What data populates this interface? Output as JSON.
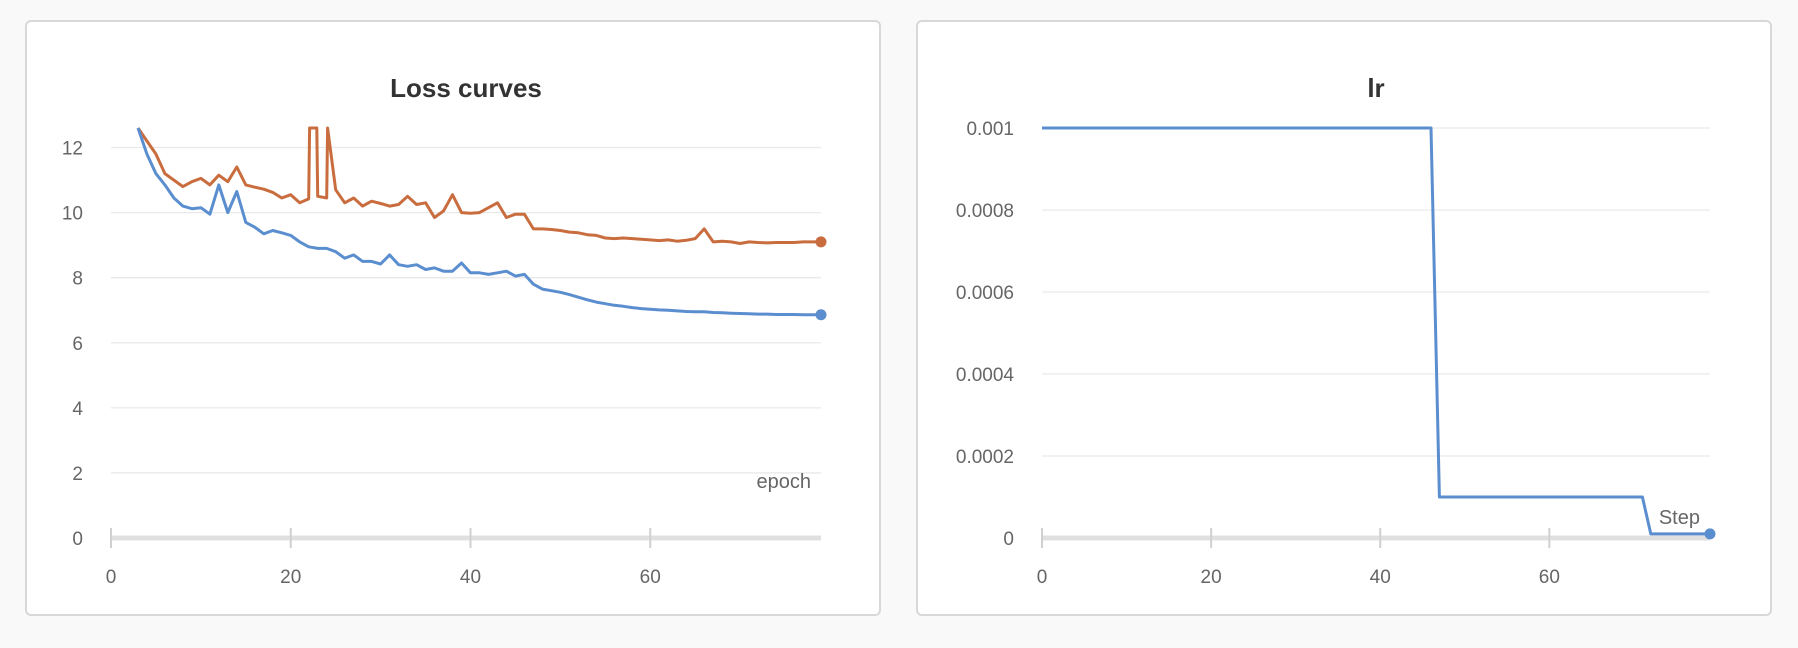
{
  "colors": {
    "blue": "#5b8ecf",
    "orange": "#c96d3f"
  },
  "chart_data": [
    {
      "type": "line",
      "title": "Loss curves",
      "xlabel": "epoch",
      "ylabel": "",
      "xlim": [
        0,
        79
      ],
      "ylim": [
        0,
        12.6
      ],
      "xticks": [
        0,
        20,
        40,
        60
      ],
      "yticks": [
        0,
        2,
        4,
        6,
        8,
        10,
        12
      ],
      "grid": true,
      "legend": "none",
      "series": [
        {
          "color": "#c96d3f",
          "end_marker": true,
          "x": [
            3,
            4,
            5,
            6,
            7,
            8,
            9,
            10,
            11,
            12,
            13,
            14,
            15,
            16,
            17,
            18,
            19,
            20,
            21,
            22,
            22.1,
            22.9,
            23,
            24,
            24.1,
            25,
            26,
            27,
            28,
            29,
            30,
            31,
            32,
            33,
            34,
            35,
            36,
            37,
            38,
            39,
            40,
            41,
            42,
            43,
            44,
            45,
            46,
            47,
            48,
            49,
            50,
            51,
            52,
            53,
            54,
            55,
            56,
            57,
            58,
            59,
            60,
            61,
            62,
            63,
            64,
            65,
            66,
            67,
            68,
            69,
            70,
            71,
            72,
            73,
            74,
            75,
            76,
            77,
            78,
            79
          ],
          "y": [
            12.6,
            12.2,
            11.8,
            11.2,
            11.0,
            10.8,
            10.95,
            11.05,
            10.85,
            11.15,
            10.95,
            11.4,
            10.85,
            10.78,
            10.72,
            10.62,
            10.45,
            10.55,
            10.3,
            10.42,
            12.6,
            12.6,
            10.5,
            10.45,
            12.6,
            10.7,
            10.3,
            10.45,
            10.2,
            10.35,
            10.28,
            10.2,
            10.25,
            10.5,
            10.25,
            10.3,
            9.85,
            10.05,
            10.55,
            10.0,
            9.98,
            10.0,
            10.15,
            10.3,
            9.85,
            9.95,
            9.95,
            9.5,
            9.5,
            9.48,
            9.45,
            9.4,
            9.38,
            9.32,
            9.3,
            9.22,
            9.2,
            9.22,
            9.2,
            9.18,
            9.16,
            9.14,
            9.16,
            9.12,
            9.15,
            9.2,
            9.5,
            9.1,
            9.12,
            9.1,
            9.05,
            9.1,
            9.08,
            9.07,
            9.08,
            9.08,
            9.08,
            9.1,
            9.1,
            9.1
          ]
        },
        {
          "color": "#5b8ecf",
          "end_marker": true,
          "x": [
            3,
            4,
            5,
            6,
            7,
            8,
            9,
            10,
            11,
            12,
            13,
            14,
            15,
            16,
            17,
            18,
            19,
            20,
            21,
            22,
            23,
            24,
            25,
            26,
            27,
            28,
            29,
            30,
            31,
            32,
            33,
            34,
            35,
            36,
            37,
            38,
            39,
            40,
            41,
            42,
            43,
            44,
            45,
            46,
            47,
            48,
            49,
            50,
            51,
            52,
            53,
            54,
            55,
            56,
            57,
            58,
            59,
            60,
            61,
            62,
            63,
            64,
            65,
            66,
            67,
            68,
            69,
            70,
            71,
            72,
            73,
            74,
            75,
            76,
            77,
            78,
            79
          ],
          "y": [
            12.6,
            11.8,
            11.2,
            10.85,
            10.45,
            10.2,
            10.12,
            10.15,
            9.95,
            10.85,
            10.0,
            10.65,
            9.7,
            9.55,
            9.35,
            9.45,
            9.38,
            9.3,
            9.1,
            8.95,
            8.9,
            8.9,
            8.8,
            8.6,
            8.7,
            8.5,
            8.5,
            8.42,
            8.7,
            8.4,
            8.35,
            8.4,
            8.25,
            8.3,
            8.2,
            8.2,
            8.45,
            8.15,
            8.15,
            8.1,
            8.15,
            8.2,
            8.05,
            8.1,
            7.8,
            7.65,
            7.6,
            7.55,
            7.48,
            7.4,
            7.32,
            7.25,
            7.2,
            7.15,
            7.12,
            7.08,
            7.05,
            7.03,
            7.01,
            7.0,
            6.98,
            6.96,
            6.95,
            6.95,
            6.93,
            6.92,
            6.91,
            6.9,
            6.89,
            6.88,
            6.88,
            6.87,
            6.87,
            6.87,
            6.86,
            6.86,
            6.86
          ]
        }
      ]
    },
    {
      "type": "line",
      "title": "lr",
      "xlabel": "Step",
      "ylabel": "",
      "xlim": [
        0,
        79
      ],
      "ylim": [
        0,
        0.001
      ],
      "xticks": [
        0,
        20,
        40,
        60
      ],
      "yticks": [
        0,
        0.0002,
        0.0004,
        0.0006,
        0.0008,
        0.001
      ],
      "ytick_labels": [
        "0",
        "0.0002",
        "0.0004",
        "0.0006",
        "0.0008",
        "0.001"
      ],
      "grid": true,
      "legend": "none",
      "series": [
        {
          "color": "#5b8ecf",
          "end_marker": true,
          "x": [
            0,
            46,
            47,
            71,
            72,
            79
          ],
          "y": [
            0.001,
            0.001,
            0.0001,
            0.0001,
            1e-05,
            1e-05
          ]
        }
      ]
    }
  ]
}
